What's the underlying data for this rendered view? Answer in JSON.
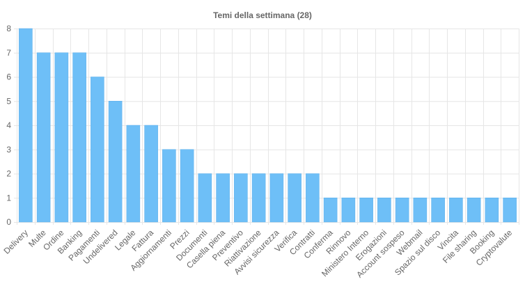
{
  "chart_data": {
    "type": "bar",
    "title": "Temi della settimana (28)",
    "xlabel": "",
    "ylabel": "",
    "categories": [
      "Delivery",
      "Multe",
      "Ordine",
      "Banking",
      "Pagamenti",
      "Undelivered",
      "Legale",
      "Fattura",
      "Aggiornamenti",
      "Prezzi",
      "Documenti",
      "Casella piena",
      "Preventivo",
      "Riattivazione",
      "Avvisi sicurezza",
      "Verifica",
      "Contratti",
      "Conferma",
      "Rinnovo",
      "Ministero Interno",
      "Erogazioni",
      "Account sospeso",
      "Webmail",
      "Spazio sul disco",
      "Vincita",
      "File sharing",
      "Booking",
      "Cryptovalute"
    ],
    "values": [
      8,
      7,
      7,
      7,
      6,
      5,
      4,
      4,
      3,
      3,
      2,
      2,
      2,
      2,
      2,
      2,
      2,
      1,
      1,
      1,
      1,
      1,
      1,
      1,
      1,
      1,
      1,
      1
    ],
    "ylim": [
      0,
      8
    ],
    "yticks": [
      0,
      1,
      2,
      3,
      4,
      5,
      6,
      7,
      8
    ],
    "grid": true,
    "legend": "none",
    "colors": {
      "bar": "#6ebff7",
      "bar_border": "#5aaee9",
      "grid": "#e6e6e6",
      "text": "#666666"
    }
  }
}
